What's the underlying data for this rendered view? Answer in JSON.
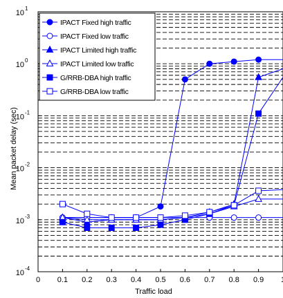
{
  "chart_data": {
    "type": "line",
    "xlabel": "Traffic load",
    "ylabel": "Mean packet delay (sec)",
    "xlim": [
      0,
      1
    ],
    "ylim": [
      0.0001,
      10
    ],
    "yscale": "log",
    "x_ticks": [
      "0",
      "0.1",
      "0.2",
      "0.3",
      "0.4",
      "0.5",
      "0.6",
      "0.7",
      "0.8",
      "0.9",
      "1"
    ],
    "y_ticks": [
      {
        "base": "10",
        "exp": "-4",
        "value": 0.0001
      },
      {
        "base": "10",
        "exp": "-3",
        "value": 0.001
      },
      {
        "base": "10",
        "exp": "-2",
        "value": 0.01
      },
      {
        "base": "10",
        "exp": "-1",
        "value": 0.1
      },
      {
        "base": "10",
        "exp": "0",
        "value": 1
      },
      {
        "base": "10",
        "exp": "1",
        "value": 10
      }
    ],
    "grid": "horizontal dashed",
    "legend_position": "top-left",
    "color": "#0000ff",
    "x": [
      0.1,
      0.2,
      0.3,
      0.4,
      0.5,
      0.6,
      0.7,
      0.8,
      0.9,
      1.0
    ],
    "series": [
      {
        "name": "IPACT Fixed high traffic",
        "marker": "circle",
        "filled": true,
        "values": [
          0.0011,
          0.0011,
          0.0011,
          0.0011,
          0.0018,
          0.5,
          1.0,
          1.1,
          1.2,
          1.2
        ]
      },
      {
        "name": "IPACT Fixed low traffic",
        "marker": "circle",
        "filled": false,
        "values": [
          0.0011,
          0.0011,
          0.0011,
          0.0011,
          0.0011,
          0.0011,
          0.0011,
          0.0011,
          0.0011,
          0.0011
        ]
      },
      {
        "name": "IPACT Limited high traffic",
        "marker": "triangle",
        "filled": true,
        "values": [
          0.0011,
          0.0009,
          0.001,
          0.001,
          0.001,
          0.0011,
          0.0014,
          0.002,
          0.55,
          0.8
        ]
      },
      {
        "name": "IPACT Limited low traffic",
        "marker": "triangle",
        "filled": false,
        "values": [
          0.0011,
          0.001,
          0.001,
          0.001,
          0.001,
          0.0011,
          0.0013,
          0.0018,
          0.0025,
          0.0025
        ]
      },
      {
        "name": "G/RRB-DBA high traffic",
        "marker": "square",
        "filled": true,
        "values": [
          0.0009,
          0.0007,
          0.0007,
          0.0007,
          0.0008,
          0.001,
          0.0013,
          0.0019,
          0.11,
          0.55
        ]
      },
      {
        "name": "G/RRB-DBA low traffic",
        "marker": "square",
        "filled": false,
        "values": [
          0.002,
          0.0013,
          0.0011,
          0.0011,
          0.0011,
          0.0012,
          0.0014,
          0.0019,
          0.0036,
          0.0038
        ]
      }
    ]
  }
}
